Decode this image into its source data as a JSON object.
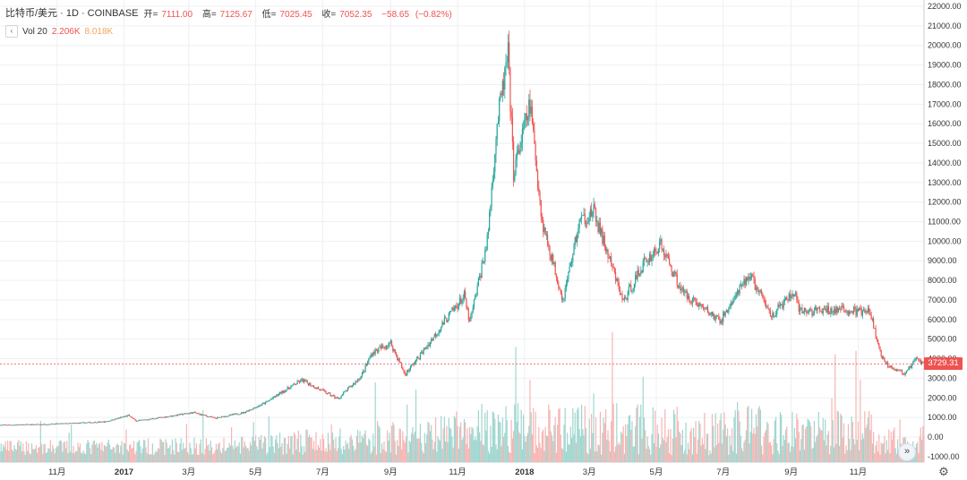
{
  "legend": {
    "symbol": "比特币/美元 · 1D · COINBASE",
    "open_label": "开=",
    "open_value": "7111.00",
    "high_label": "高=",
    "high_value": "7125.67",
    "low_label": "低=",
    "low_value": "7025.45",
    "close_label": "收=",
    "close_value": "7052.35",
    "change": "−58.65",
    "change_pct": "(−0.82%)",
    "volume_label": "Vol 20",
    "volume_value_1": "2.206K",
    "volume_value_2": "8.018K",
    "collapse_icon": "chevron-left-icon"
  },
  "last_price": "3729.31",
  "toolbar": {
    "scroll_icon": "double-chevron-right-icon",
    "settings_icon": "gear-icon"
  },
  "colors": {
    "up": "#26a69a",
    "down": "#ef5350",
    "vol_up": "#9fd6cf",
    "vol_down": "#f6b5b3",
    "grid": "#eef0f3"
  },
  "chart_data": {
    "type": "candlestick",
    "title": "",
    "xlabel": "",
    "ylabel": "",
    "price_axis": {
      "ticks": [
        -1000,
        0,
        1000,
        2000,
        3000,
        4000,
        5000,
        6000,
        7000,
        8000,
        9000,
        10000,
        11000,
        12000,
        13000,
        14000,
        15000,
        16000,
        17000,
        18000,
        19000,
        20000,
        21000,
        22000
      ],
      "tick_labels": [
        "-1000.00",
        "0.00",
        "1000.00",
        "2000.00",
        "3000.00",
        "4000.00",
        "5000.00",
        "6000.00",
        "7000.00",
        "8000.00",
        "9000.00",
        "10000.00",
        "11000.00",
        "12000.00",
        "13000.00",
        "14000.00",
        "15000.00",
        "16000.00",
        "17000.00",
        "18000.00",
        "19000.00",
        "20000.00",
        "21000.00",
        "22000.00"
      ],
      "range": [
        -1000,
        22000
      ]
    },
    "time_axis": {
      "tick_labels": [
        "11月",
        "2017",
        "3月",
        "5月",
        "7月",
        "9月",
        "11月",
        "2018",
        "3月",
        "5月",
        "7月",
        "9月",
        "11月"
      ],
      "tick_dates": [
        "2016-11-01",
        "2017-01-01",
        "2017-03-01",
        "2017-05-01",
        "2017-07-01",
        "2017-09-01",
        "2017-11-01",
        "2018-01-01",
        "2018-03-01",
        "2018-05-01",
        "2018-07-01",
        "2018-09-01",
        "2018-11-01"
      ],
      "range": [
        "2016-09-10",
        "2018-12-31"
      ]
    },
    "grid": true,
    "series": [
      {
        "kind": "close_path",
        "points": [
          [
            "2016-09-10",
            610
          ],
          [
            "2016-10-15",
            640
          ],
          [
            "2016-11-15",
            700
          ],
          [
            "2016-12-15",
            780
          ],
          [
            "2017-01-05",
            1100
          ],
          [
            "2017-01-12",
            820
          ],
          [
            "2017-02-01",
            970
          ],
          [
            "2017-03-05",
            1250
          ],
          [
            "2017-03-25",
            960
          ],
          [
            "2017-04-20",
            1250
          ],
          [
            "2017-05-10",
            1750
          ],
          [
            "2017-05-25",
            2300
          ],
          [
            "2017-06-12",
            2900
          ],
          [
            "2017-07-15",
            1950
          ],
          [
            "2017-08-05",
            3100
          ],
          [
            "2017-08-15",
            4300
          ],
          [
            "2017-09-01",
            4800
          ],
          [
            "2017-09-14",
            3200
          ],
          [
            "2017-10-01",
            4400
          ],
          [
            "2017-10-20",
            5900
          ],
          [
            "2017-11-07",
            7200
          ],
          [
            "2017-11-12",
            5800
          ],
          [
            "2017-11-28",
            10000
          ],
          [
            "2017-12-07",
            16000
          ],
          [
            "2017-12-17",
            19500
          ],
          [
            "2017-12-22",
            13500
          ],
          [
            "2018-01-06",
            17000
          ],
          [
            "2018-01-17",
            11000
          ],
          [
            "2018-02-05",
            7000
          ],
          [
            "2018-02-20",
            11000
          ],
          [
            "2018-03-05",
            11500
          ],
          [
            "2018-04-01",
            6900
          ],
          [
            "2018-04-20",
            8900
          ],
          [
            "2018-05-05",
            9800
          ],
          [
            "2018-05-25",
            7400
          ],
          [
            "2018-06-15",
            6500
          ],
          [
            "2018-06-28",
            5900
          ],
          [
            "2018-07-25",
            8300
          ],
          [
            "2018-08-14",
            6200
          ],
          [
            "2018-09-04",
            7400
          ],
          [
            "2018-09-08",
            6400
          ],
          [
            "2018-10-15",
            6500
          ],
          [
            "2018-11-12",
            6350
          ],
          [
            "2018-11-20",
            4500
          ],
          [
            "2018-11-25",
            3800
          ],
          [
            "2018-12-14",
            3200
          ],
          [
            "2018-12-24",
            4000
          ],
          [
            "2018-12-31",
            3729
          ]
        ]
      },
      {
        "kind": "volume",
        "note": "Vol 20",
        "points": []
      }
    ],
    "last_value": 3729.31
  }
}
